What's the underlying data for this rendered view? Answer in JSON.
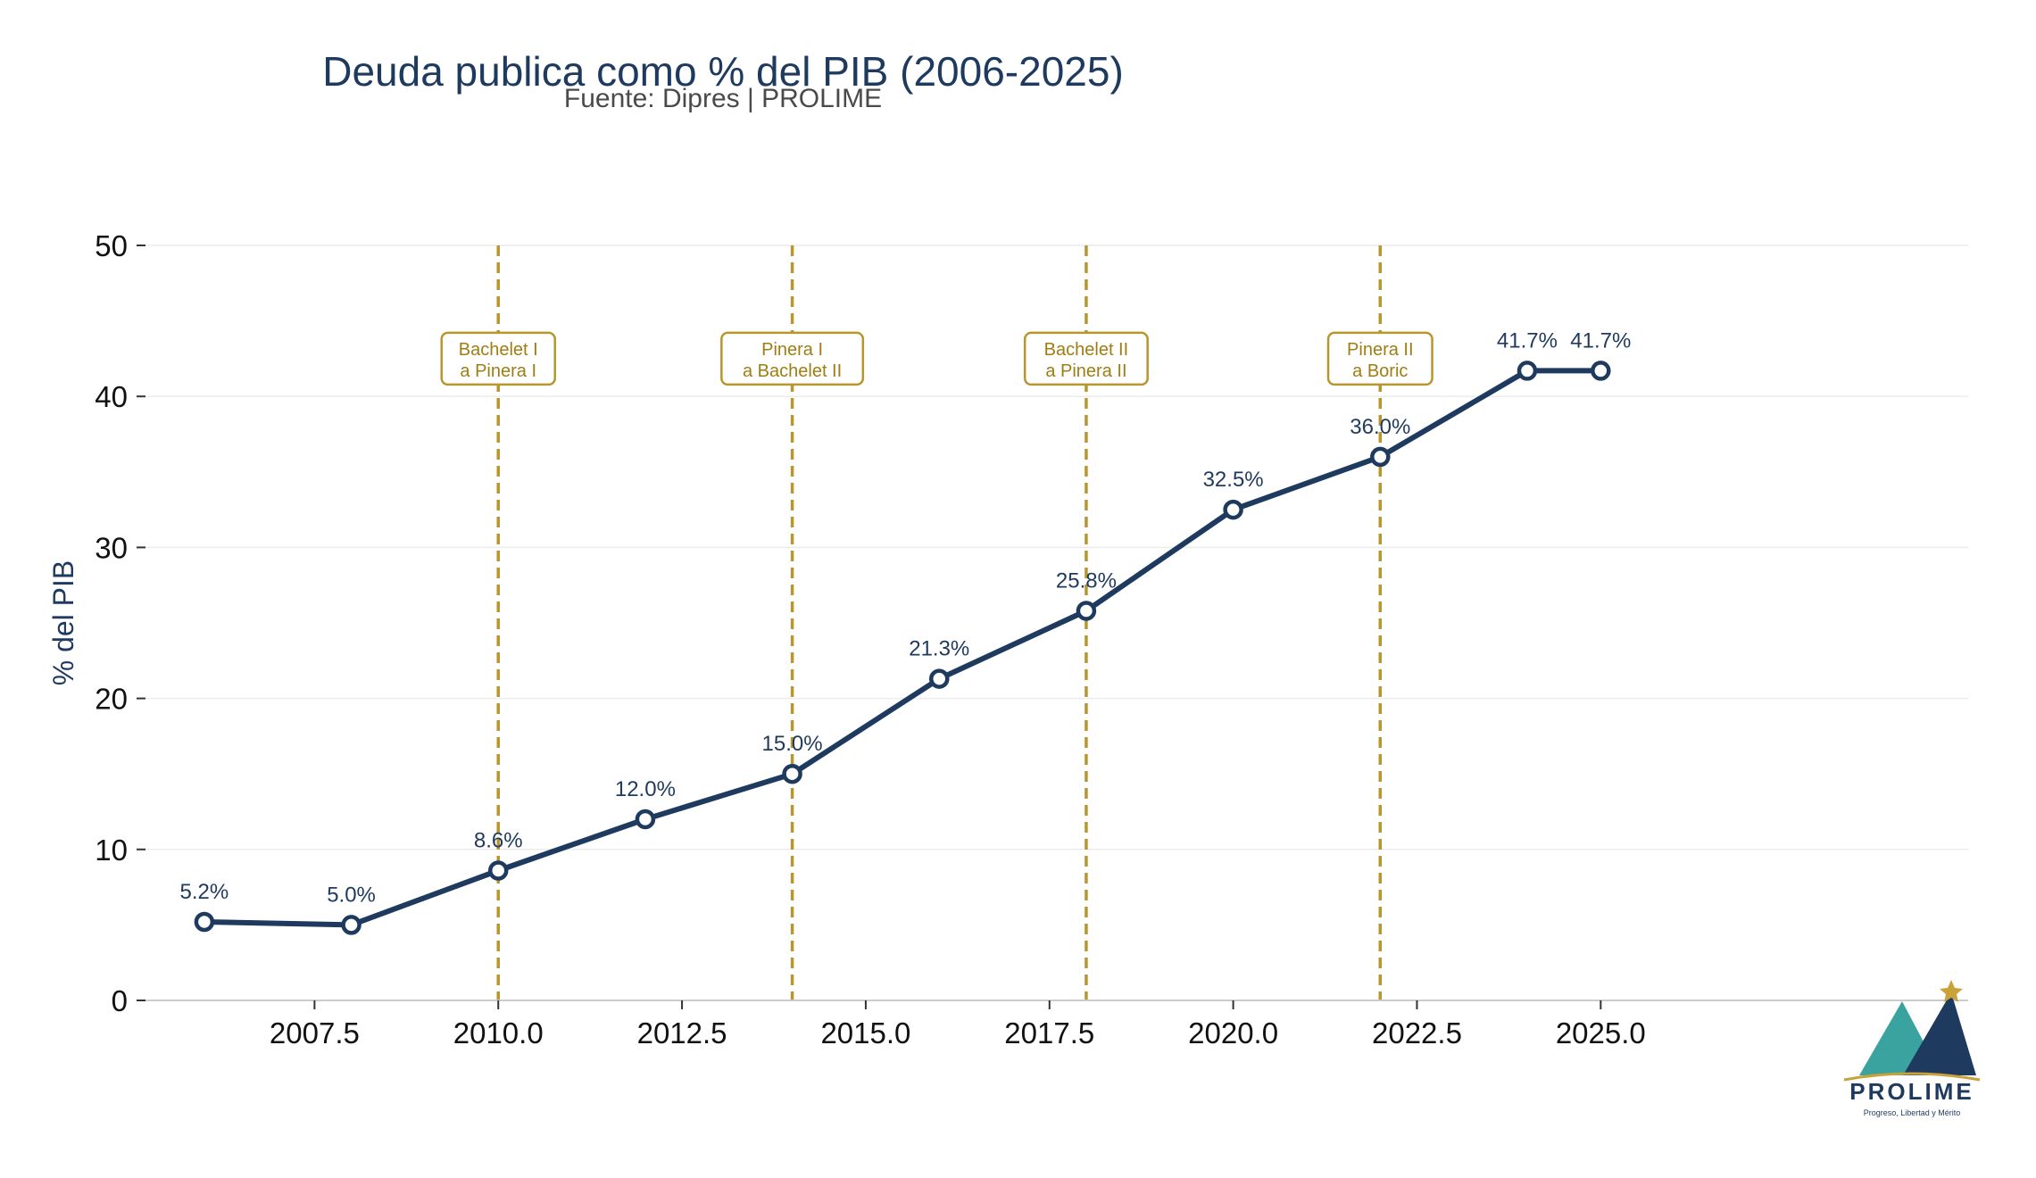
{
  "chart_data": {
    "type": "line",
    "title": "Deuda publica como % del PIB (2006-2025)",
    "subtitle": "Fuente: Dipres | PROLIME",
    "xlabel": "",
    "ylabel": "% del PIB",
    "xlim": [
      2005.2,
      2030.0
    ],
    "ylim": [
      0,
      50
    ],
    "x_ticks": [
      2007.5,
      2010.0,
      2012.5,
      2015.0,
      2017.5,
      2020.0,
      2022.5,
      2025.0
    ],
    "x_tick_labels": [
      "2007.5",
      "2010.0",
      "2012.5",
      "2015.0",
      "2017.5",
      "2020.0",
      "2022.5",
      "2025.0"
    ],
    "y_ticks": [
      0,
      10,
      20,
      30,
      40,
      50
    ],
    "y_tick_labels": [
      "0",
      "10",
      "20",
      "30",
      "40",
      "50"
    ],
    "grid": true,
    "series": [
      {
        "x": [
          2006,
          2008,
          2010,
          2012,
          2014,
          2016,
          2018,
          2020,
          2022,
          2024,
          2025
        ],
        "values": [
          5.2,
          5.0,
          8.6,
          12.0,
          15.0,
          21.3,
          25.8,
          32.5,
          36.0,
          41.7,
          41.7
        ],
        "labels": [
          "5.2%",
          "5.0%",
          "8.6%",
          "12.0%",
          "15.0%",
          "21.3%",
          "25.8%",
          "32.5%",
          "36.0%",
          "41.7%",
          "41.7%"
        ],
        "color": "#1f3a5f"
      }
    ],
    "annotations": [
      {
        "x": 2010,
        "y": 42.5,
        "lines": [
          "Bachelet I",
          "a Pinera I"
        ]
      },
      {
        "x": 2014,
        "y": 42.5,
        "lines": [
          "Pinera I",
          "a Bachelet II"
        ]
      },
      {
        "x": 2018,
        "y": 42.5,
        "lines": [
          "Bachelet II",
          "a Pinera II"
        ]
      },
      {
        "x": 2022,
        "y": 42.5,
        "lines": [
          "Pinera II",
          "a Boric"
        ]
      }
    ],
    "annotation_color": "#b8962e"
  },
  "logo": {
    "name": "PROLIME",
    "tagline": "Progreso, Libertad y Mérito",
    "colors": {
      "teal": "#3aa3a0",
      "navy": "#1f3a5f",
      "gold": "#c9a23a"
    }
  }
}
